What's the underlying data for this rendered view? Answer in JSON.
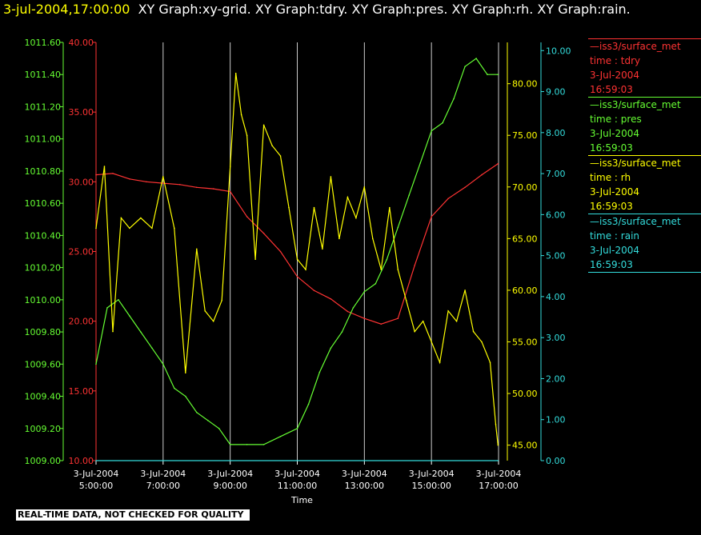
{
  "header": {
    "timestamp": "3-jul-2004,17:00:00",
    "graphs": "XY Graph:xy-grid.  XY Graph:tdry.  XY Graph:pres.  XY Graph:rh.  XY Graph:rain."
  },
  "notice": "REAL-TIME DATA, NOT CHECKED FOR QUALITY",
  "legend": [
    {
      "line1": "—iss3/surface_met",
      "line2": "time : tdry",
      "line3": "3-Jul-2004",
      "line4": "16:59:03",
      "color": "#ff3333"
    },
    {
      "line1": "—iss3/surface_met",
      "line2": "time : pres",
      "line3": "3-Jul-2004",
      "line4": "16:59:03",
      "color": "#66ff33"
    },
    {
      "line1": "—iss3/surface_met",
      "line2": "time : rh",
      "line3": "3-Jul-2004",
      "line4": "16:59:03",
      "color": "#ffff00"
    },
    {
      "line1": "—iss3/surface_met",
      "line2": "time : rain",
      "line3": "3-Jul-2004",
      "line4": "16:59:03",
      "color": "#33dddd"
    }
  ],
  "chart_data": {
    "type": "line",
    "xlabel": "Time",
    "x_ticks": [
      {
        "date": "3-Jul-2004",
        "time": "5:00:00"
      },
      {
        "date": "3-Jul-2004",
        "time": "7:00:00"
      },
      {
        "date": "3-Jul-2004",
        "time": "9:00:00"
      },
      {
        "date": "3-Jul-2004",
        "time": "11:00:00"
      },
      {
        "date": "3-Jul-2004",
        "time": "13:00:00"
      },
      {
        "date": "3-Jul-2004",
        "time": "15:00:00"
      },
      {
        "date": "3-Jul-2004",
        "time": "17:00:00"
      }
    ],
    "xlim": [
      "3-Jul-2004 5:00:00",
      "3-Jul-2004 17:00:00"
    ],
    "grid": "vertical",
    "axes": {
      "pres": {
        "color": "#66ff33",
        "ylim": [
          1009.0,
          1011.6
        ],
        "ticks": [
          "1009.00",
          "1009.20",
          "1009.40",
          "1009.60",
          "1009.80",
          "1010.00",
          "1010.20",
          "1010.40",
          "1010.60",
          "1010.80",
          "1011.00",
          "1011.20",
          "1011.40",
          "1011.60"
        ]
      },
      "tdry": {
        "color": "#ff3333",
        "ylim": [
          10,
          40
        ],
        "ticks": [
          "10.00",
          "15.00",
          "20.00",
          "25.00",
          "30.00",
          "35.00",
          "40.00"
        ]
      },
      "rh": {
        "color": "#ffff00",
        "ylim": [
          43.5,
          84
        ],
        "ticks": [
          "45.00",
          "50.00",
          "55.00",
          "60.00",
          "65.00",
          "70.00",
          "75.00",
          "80.00"
        ]
      },
      "rain": {
        "color": "#33dddd",
        "ylim": [
          0,
          10.2
        ],
        "ticks": [
          "0.00",
          "1.00",
          "2.00",
          "3.00",
          "4.00",
          "5.00",
          "6.00",
          "7.00",
          "8.00",
          "9.00",
          "10.00"
        ]
      }
    },
    "series": [
      {
        "name": "iss3/surface_met time : tdry",
        "axis": "tdry",
        "color": "#ff3333",
        "x": [
          "5:00",
          "5:30",
          "6:00",
          "6:30",
          "7:00",
          "7:30",
          "8:00",
          "8:30",
          "9:00",
          "9:30",
          "10:00",
          "10:30",
          "11:00",
          "11:30",
          "12:00",
          "12:30",
          "13:00",
          "13:30",
          "14:00",
          "14:30",
          "15:00",
          "15:30",
          "16:00",
          "16:30",
          "16:59"
        ],
        "y": [
          30.5,
          30.6,
          30.2,
          30.0,
          29.9,
          29.8,
          29.6,
          29.5,
          29.3,
          27.5,
          26.3,
          25.0,
          23.2,
          22.2,
          21.6,
          20.7,
          20.2,
          19.8,
          20.2,
          24.0,
          27.5,
          28.8,
          29.6,
          30.5,
          31.3
        ]
      },
      {
        "name": "iss3/surface_met time : pres",
        "axis": "pres",
        "color": "#66ff33",
        "x": [
          "5:00",
          "5:20",
          "5:40",
          "6:00",
          "6:20",
          "6:40",
          "7:00",
          "7:20",
          "7:40",
          "8:00",
          "8:20",
          "8:40",
          "9:00",
          "9:30",
          "10:00",
          "10:30",
          "11:00",
          "11:20",
          "11:40",
          "12:00",
          "12:20",
          "12:40",
          "13:00",
          "13:20",
          "13:40",
          "14:00",
          "14:20",
          "14:40",
          "15:00",
          "15:20",
          "15:40",
          "16:00",
          "16:20",
          "16:40",
          "16:59"
        ],
        "y": [
          1009.6,
          1009.95,
          1010.0,
          1009.9,
          1009.8,
          1009.7,
          1009.6,
          1009.45,
          1009.4,
          1009.3,
          1009.25,
          1009.2,
          1009.1,
          1009.1,
          1009.1,
          1009.15,
          1009.2,
          1009.35,
          1009.55,
          1009.7,
          1009.8,
          1009.95,
          1010.05,
          1010.1,
          1010.25,
          1010.45,
          1010.65,
          1010.85,
          1011.05,
          1011.1,
          1011.25,
          1011.45,
          1011.5,
          1011.4,
          1011.4
        ]
      },
      {
        "name": "iss3/surface_met time : rh",
        "axis": "rh",
        "color": "#ffff00",
        "x": [
          "5:00",
          "5:15",
          "5:30",
          "5:45",
          "6:00",
          "6:20",
          "6:40",
          "7:00",
          "7:20",
          "7:40",
          "8:00",
          "8:15",
          "8:30",
          "8:45",
          "9:00",
          "9:10",
          "9:20",
          "9:30",
          "9:45",
          "10:00",
          "10:15",
          "10:30",
          "10:45",
          "11:00",
          "11:15",
          "11:30",
          "11:45",
          "12:00",
          "12:15",
          "12:30",
          "12:45",
          "13:00",
          "13:15",
          "13:30",
          "13:45",
          "14:00",
          "14:15",
          "14:30",
          "14:45",
          "15:00",
          "15:15",
          "15:30",
          "15:45",
          "16:00",
          "16:15",
          "16:30",
          "16:45",
          "16:55",
          "16:59"
        ],
        "y": [
          66,
          72,
          56,
          67,
          66,
          67,
          66,
          71,
          66,
          52,
          64,
          58,
          57,
          59,
          72,
          81,
          77,
          75,
          63,
          76,
          74,
          73,
          68,
          63,
          62,
          68,
          64,
          71,
          65,
          69,
          67,
          70,
          65,
          62,
          68,
          62,
          59,
          56,
          57,
          55,
          53,
          58,
          57,
          60,
          56,
          55,
          53,
          47,
          45
        ]
      },
      {
        "name": "iss3/surface_met time : rain",
        "axis": "rain",
        "color": "#33dddd",
        "x": [
          "5:00",
          "16:59"
        ],
        "y": [
          0,
          0
        ]
      }
    ]
  }
}
